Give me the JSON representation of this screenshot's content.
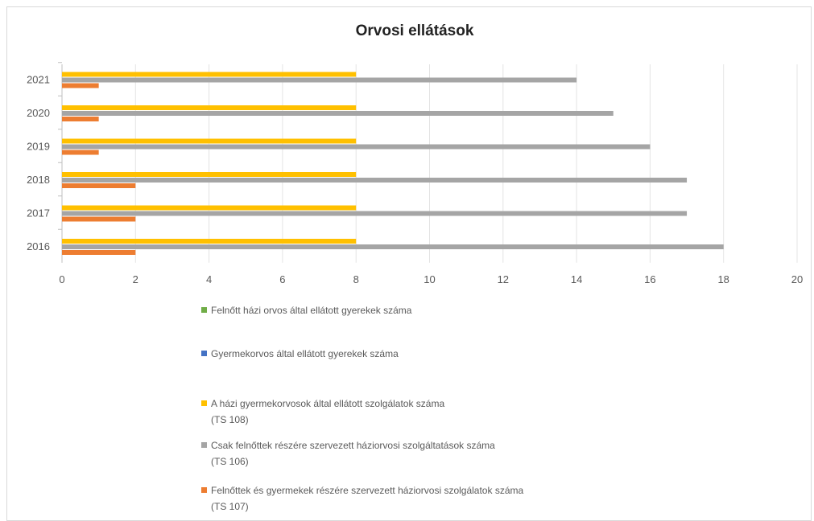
{
  "chart_data": {
    "type": "bar",
    "orientation": "horizontal",
    "title": "Orvosi ellátások",
    "categories": [
      "2016",
      "2017",
      "2018",
      "2019",
      "2020",
      "2021"
    ],
    "xlim": [
      0,
      20
    ],
    "xticks": [
      "0",
      "2",
      "4",
      "6",
      "8",
      "10",
      "12",
      "14",
      "16",
      "18",
      "20"
    ],
    "grid": true,
    "legend_position": "bottom",
    "series": [
      {
        "name": "Felnőttek és gyermekek részére szervezett háziorvosi szolgálatok száma",
        "name_line2": "(TS 107)",
        "color": "#ed7d31",
        "values": [
          2,
          2,
          2,
          1,
          1,
          1
        ]
      },
      {
        "name": "Csak felnőttek részére szervezett háziorvosi szolgáltatások száma",
        "name_line2": "(TS 106)",
        "color": "#a5a5a5",
        "values": [
          18,
          17,
          17,
          16,
          15,
          14
        ]
      },
      {
        "name": "A házi gyermekorvosok által ellátott szolgálatok száma",
        "name_line2": "(TS 108)",
        "color": "#ffc000",
        "values": [
          8,
          8,
          8,
          8,
          8,
          8
        ]
      },
      {
        "name": "Gyermekorvos által ellátott gyerekek száma",
        "name_line2": "",
        "color": "#4472c4",
        "values": [
          0,
          0,
          0,
          0,
          0,
          0
        ]
      },
      {
        "name": "Felnőtt házi orvos által ellátott gyerekek száma",
        "name_line2": "",
        "color": "#70ad47",
        "values": [
          0,
          0,
          0,
          0,
          0,
          0
        ]
      }
    ]
  }
}
